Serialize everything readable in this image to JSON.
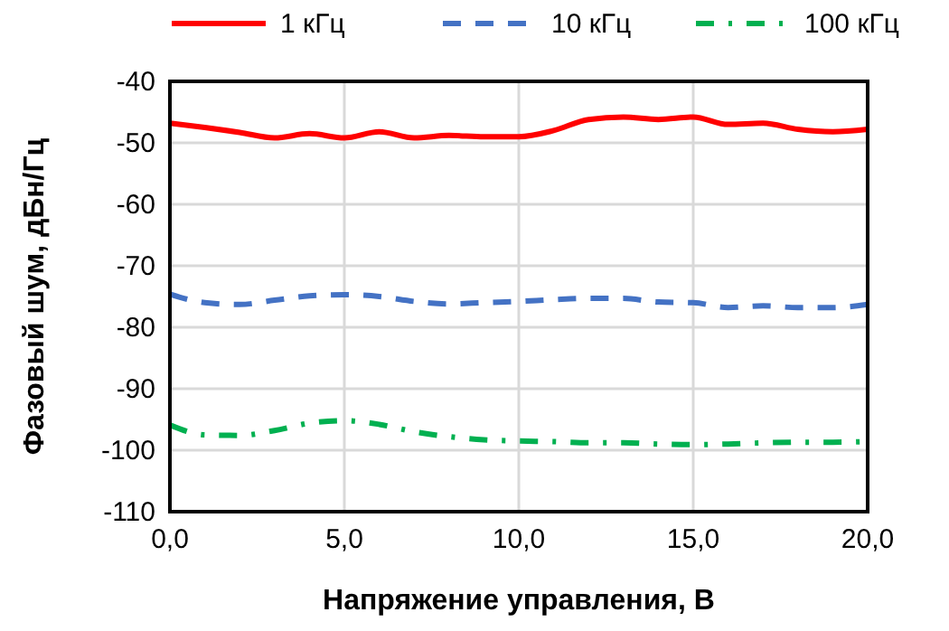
{
  "chart_data": {
    "type": "line",
    "xlabel": "Напряжение управления, В",
    "ylabel": "Фазовый шум, дБн/Гц",
    "x": [
      0,
      1,
      2,
      3,
      4,
      5,
      6,
      7,
      8,
      9,
      10,
      11,
      12,
      13,
      14,
      15,
      16,
      17,
      18,
      19,
      20
    ],
    "xlim": [
      0,
      20
    ],
    "xticks": [
      {
        "value": 0,
        "label": "0,0"
      },
      {
        "value": 5,
        "label": "5,0"
      },
      {
        "value": 10,
        "label": "10,0"
      },
      {
        "value": 15,
        "label": "15,0"
      },
      {
        "value": 20,
        "label": "20,0"
      }
    ],
    "ylim": [
      -110,
      -40
    ],
    "yticks": [
      -110,
      -100,
      -90,
      -80,
      -70,
      -60,
      -50,
      -40
    ],
    "grid": true,
    "legend": "top",
    "series": [
      {
        "name": "1 кГц",
        "color": "#ff0000",
        "line_style": "solid",
        "values": [
          -46.8,
          -47.5,
          -48.3,
          -49.2,
          -48.5,
          -49.2,
          -48.2,
          -49.2,
          -48.8,
          -49,
          -49,
          -48,
          -46.2,
          -45.8,
          -46.2,
          -45.8,
          -47,
          -46.8,
          -47.8,
          -48.2,
          -47.8
        ]
      },
      {
        "name": "10 кГц",
        "color": "#4472c4",
        "line_style": "dashed",
        "values": [
          -74.6,
          -76,
          -76.3,
          -75.6,
          -74.9,
          -74.7,
          -75,
          -75.8,
          -76.2,
          -76,
          -75.8,
          -75.5,
          -75.3,
          -75.3,
          -75.9,
          -76,
          -76.8,
          -76.5,
          -76.8,
          -76.8,
          -76.3
        ]
      },
      {
        "name": "100 кГц",
        "color": "#00b050",
        "line_style": "dashdot",
        "values": [
          -95.9,
          -97.5,
          -97.6,
          -96.8,
          -95.6,
          -95.2,
          -95.8,
          -97,
          -97.8,
          -98.3,
          -98.5,
          -98.6,
          -98.8,
          -98.8,
          -99,
          -99.1,
          -99,
          -98.8,
          -98.7,
          -98.7,
          -98.6
        ]
      }
    ]
  }
}
